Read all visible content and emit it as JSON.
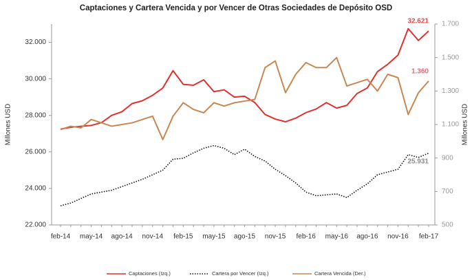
{
  "chart_data": {
    "type": "line",
    "title": "Captaciones y Cartera Vencida y por Vencer de Otras Sociedades de Depósito OSD",
    "y_label": "Millones USD",
    "y2_label": "Millones USD",
    "categories": [
      "feb-14",
      null,
      null,
      "may-14",
      null,
      null,
      "ago-14",
      null,
      null,
      "nov-14",
      null,
      null,
      "feb-15",
      null,
      null,
      "may-15",
      null,
      null,
      "ago-15",
      null,
      null,
      "nov-15",
      null,
      null,
      "feb-16",
      null,
      null,
      "may-16",
      null,
      null,
      "ago-16",
      null,
      null,
      "nov-16",
      null,
      null,
      "feb-17"
    ],
    "ylim": [
      22000,
      33000
    ],
    "yticks": [
      {
        "value": 22000,
        "label": "22.000"
      },
      {
        "value": 24000,
        "label": "24.000"
      },
      {
        "value": 26000,
        "label": "26.000"
      },
      {
        "value": 28000,
        "label": "28.000"
      },
      {
        "value": 30000,
        "label": "30.000"
      },
      {
        "value": 32000,
        "label": "32.000"
      }
    ],
    "y2lim": [
      500,
      1700
    ],
    "y2ticks": [
      500,
      700,
      900,
      {
        "value": 1100,
        "label": "1.100"
      },
      {
        "value": 1300,
        "label": "1.300"
      },
      {
        "value": 1500,
        "label": "1.500"
      },
      {
        "value": 1700,
        "label": "1.700"
      }
    ],
    "series": [
      {
        "name": "Captaciones (Izq.)",
        "color": "#e0312f",
        "style": "solid",
        "label_color": "#e0484a",
        "values": [
          27250,
          27350,
          27400,
          27450,
          27600,
          28000,
          28200,
          28650,
          28800,
          29100,
          29500,
          30450,
          29700,
          29650,
          29950,
          29300,
          29400,
          29000,
          29050,
          28700,
          28050,
          27800,
          27650,
          27850,
          28150,
          28350,
          28700,
          28400,
          28550,
          29200,
          29500,
          30400,
          30800,
          31300,
          32750,
          32100,
          32621
        ],
        "value_labels": [
          null,
          null,
          null,
          null,
          null,
          null,
          null,
          null,
          null,
          null,
          null,
          null,
          null,
          null,
          null,
          null,
          null,
          null,
          null,
          null,
          null,
          null,
          null,
          null,
          null,
          null,
          null,
          null,
          null,
          null,
          null,
          null,
          null,
          null,
          null,
          null,
          "32.621"
        ]
      },
      {
        "name": "Cartera por Vencer (Izq.)",
        "color": "#111111",
        "style": "dotted",
        "label_color": "#8a8a8a",
        "values": [
          23050,
          23200,
          23450,
          23700,
          23800,
          23900,
          24100,
          24300,
          24500,
          24750,
          25000,
          25600,
          25650,
          25950,
          26200,
          26350,
          26200,
          25850,
          26150,
          25750,
          25500,
          25050,
          24700,
          24300,
          23800,
          23600,
          23650,
          23700,
          23500,
          23900,
          24250,
          24750,
          24900,
          25050,
          25850,
          25700,
          25931
        ],
        "value_labels": [
          null,
          null,
          null,
          null,
          null,
          null,
          null,
          null,
          null,
          null,
          null,
          null,
          null,
          null,
          null,
          null,
          null,
          null,
          null,
          null,
          null,
          null,
          null,
          null,
          null,
          null,
          null,
          null,
          null,
          null,
          null,
          null,
          null,
          null,
          null,
          null,
          "25.931"
        ]
      },
      {
        "name": "Cartera Vencida (Der.)",
        "color": "#c8874f",
        "style": "solid",
        "axis": "y2",
        "label_color": "#e0707a",
        "values": [
          1070,
          1090,
          1080,
          1130,
          1110,
          1090,
          1100,
          1110,
          1130,
          1150,
          1010,
          1150,
          1230,
          1190,
          1170,
          1230,
          1210,
          1230,
          1240,
          1250,
          1440,
          1480,
          1290,
          1400,
          1470,
          1440,
          1440,
          1500,
          1330,
          1350,
          1370,
          1300,
          1400,
          1380,
          1160,
          1290,
          1360
        ],
        "value_labels": [
          null,
          null,
          null,
          null,
          null,
          null,
          null,
          null,
          null,
          null,
          null,
          null,
          null,
          null,
          null,
          null,
          null,
          null,
          null,
          null,
          null,
          null,
          null,
          null,
          null,
          null,
          null,
          null,
          null,
          null,
          null,
          null,
          null,
          null,
          null,
          null,
          "1.360"
        ]
      }
    ],
    "legend": "bottom"
  }
}
